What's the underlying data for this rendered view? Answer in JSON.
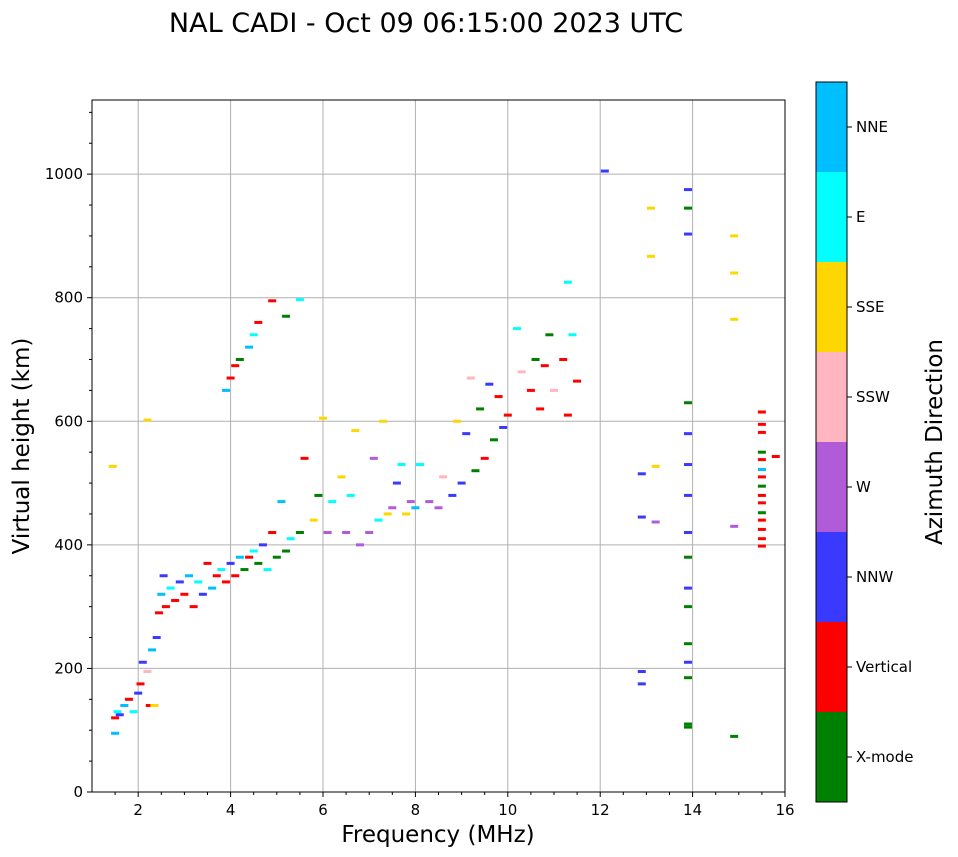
{
  "chart_data": {
    "type": "scatter",
    "title": "NAL CADI - Oct 09 06:15:00 2023 UTC",
    "xlabel": "Frequency (MHz)",
    "ylabel": "Virtual height (km)",
    "xlim": [
      1,
      16
    ],
    "ylim": [
      0,
      1120
    ],
    "xticks": [
      2,
      4,
      6,
      8,
      10,
      12,
      14,
      16
    ],
    "yticks": [
      0,
      200,
      400,
      600,
      800,
      1000
    ],
    "grid": true,
    "colorbar": {
      "label": "Azimuth Direction",
      "categories": [
        {
          "name": "X-mode",
          "color": "#008000"
        },
        {
          "name": "Vertical",
          "color": "#ff0000"
        },
        {
          "name": "NNW",
          "color": "#3a3aff"
        },
        {
          "name": "W",
          "color": "#b05cd8"
        },
        {
          "name": "SSW",
          "color": "#ffb6c1"
        },
        {
          "name": "SSE",
          "color": "#ffd700"
        },
        {
          "name": "E",
          "color": "#00ffff"
        },
        {
          "name": "NNE",
          "color": "#00bfff"
        }
      ]
    },
    "marker": "short horizontal dash",
    "points": [
      [
        1.45,
        527,
        "SSE"
      ],
      [
        1.5,
        95,
        "NNE"
      ],
      [
        1.5,
        120,
        "Vertical"
      ],
      [
        1.55,
        130,
        "E"
      ],
      [
        1.6,
        125,
        "NNW"
      ],
      [
        1.7,
        140,
        "NNE"
      ],
      [
        1.8,
        150,
        "Vertical"
      ],
      [
        1.9,
        130,
        "E"
      ],
      [
        2.0,
        160,
        "NNW"
      ],
      [
        2.05,
        175,
        "Vertical"
      ],
      [
        2.1,
        210,
        "NNW"
      ],
      [
        2.2,
        195,
        "SSW"
      ],
      [
        2.25,
        140,
        "Vertical"
      ],
      [
        2.3,
        230,
        "NNE"
      ],
      [
        2.35,
        140,
        "SSE"
      ],
      [
        2.4,
        250,
        "NNW"
      ],
      [
        2.2,
        602,
        "SSE"
      ],
      [
        2.45,
        290,
        "Vertical"
      ],
      [
        2.5,
        320,
        "NNE"
      ],
      [
        2.55,
        350,
        "NNW"
      ],
      [
        2.6,
        300,
        "Vertical"
      ],
      [
        2.7,
        330,
        "E"
      ],
      [
        2.8,
        310,
        "Vertical"
      ],
      [
        2.9,
        340,
        "NNW"
      ],
      [
        3.0,
        320,
        "Vertical"
      ],
      [
        3.1,
        350,
        "NNE"
      ],
      [
        3.2,
        300,
        "Vertical"
      ],
      [
        3.3,
        340,
        "E"
      ],
      [
        3.4,
        320,
        "NNW"
      ],
      [
        3.5,
        370,
        "Vertical"
      ],
      [
        3.6,
        330,
        "NNE"
      ],
      [
        3.7,
        350,
        "Vertical"
      ],
      [
        3.8,
        360,
        "E"
      ],
      [
        3.9,
        340,
        "Vertical"
      ],
      [
        4.0,
        370,
        "NNW"
      ],
      [
        4.1,
        350,
        "Vertical"
      ],
      [
        4.2,
        380,
        "NNE"
      ],
      [
        4.3,
        360,
        "X-mode"
      ],
      [
        4.4,
        380,
        "Vertical"
      ],
      [
        4.5,
        390,
        "E"
      ],
      [
        4.6,
        370,
        "X-mode"
      ],
      [
        4.7,
        400,
        "NNW"
      ],
      [
        4.8,
        360,
        "E"
      ],
      [
        4.9,
        420,
        "Vertical"
      ],
      [
        5.0,
        380,
        "X-mode"
      ],
      [
        5.1,
        470,
        "NNE"
      ],
      [
        5.2,
        390,
        "X-mode"
      ],
      [
        5.3,
        410,
        "E"
      ],
      [
        5.5,
        420,
        "X-mode"
      ],
      [
        5.6,
        540,
        "Vertical"
      ],
      [
        5.8,
        440,
        "SSE"
      ],
      [
        5.9,
        480,
        "X-mode"
      ],
      [
        6.0,
        605,
        "SSE"
      ],
      [
        6.1,
        420,
        "W"
      ],
      [
        6.2,
        470,
        "E"
      ],
      [
        6.4,
        510,
        "SSE"
      ],
      [
        6.5,
        420,
        "W"
      ],
      [
        6.6,
        480,
        "E"
      ],
      [
        6.7,
        585,
        "SSE"
      ],
      [
        6.8,
        400,
        "W"
      ],
      [
        7.0,
        420,
        "W"
      ],
      [
        7.1,
        540,
        "W"
      ],
      [
        7.2,
        440,
        "E"
      ],
      [
        7.3,
        600,
        "SSE"
      ],
      [
        7.4,
        450,
        "SSE"
      ],
      [
        7.5,
        460,
        "W"
      ],
      [
        7.6,
        500,
        "NNW"
      ],
      [
        7.7,
        530,
        "E"
      ],
      [
        7.8,
        450,
        "SSE"
      ],
      [
        7.9,
        470,
        "W"
      ],
      [
        8.0,
        460,
        "NNE"
      ],
      [
        8.1,
        530,
        "E"
      ],
      [
        3.9,
        650,
        "NNE"
      ],
      [
        4.0,
        670,
        "Vertical"
      ],
      [
        4.1,
        690,
        "Vertical"
      ],
      [
        4.2,
        700,
        "X-mode"
      ],
      [
        4.4,
        720,
        "NNE"
      ],
      [
        4.5,
        740,
        "E"
      ],
      [
        4.6,
        760,
        "Vertical"
      ],
      [
        4.9,
        795,
        "Vertical"
      ],
      [
        5.2,
        770,
        "X-mode"
      ],
      [
        5.5,
        797,
        "E"
      ],
      [
        8.3,
        470,
        "W"
      ],
      [
        8.5,
        460,
        "W"
      ],
      [
        8.6,
        510,
        "SSW"
      ],
      [
        8.8,
        480,
        "NNW"
      ],
      [
        8.9,
        600,
        "SSE"
      ],
      [
        9.0,
        500,
        "NNW"
      ],
      [
        9.1,
        580,
        "NNW"
      ],
      [
        9.2,
        670,
        "SSW"
      ],
      [
        9.3,
        520,
        "X-mode"
      ],
      [
        9.4,
        620,
        "X-mode"
      ],
      [
        9.5,
        540,
        "Vertical"
      ],
      [
        9.6,
        660,
        "NNW"
      ],
      [
        9.7,
        570,
        "X-mode"
      ],
      [
        9.8,
        640,
        "Vertical"
      ],
      [
        9.9,
        590,
        "NNW"
      ],
      [
        10.0,
        610,
        "Vertical"
      ],
      [
        10.2,
        750,
        "E"
      ],
      [
        10.3,
        680,
        "SSW"
      ],
      [
        10.5,
        650,
        "Vertical"
      ],
      [
        10.6,
        700,
        "X-mode"
      ],
      [
        10.7,
        620,
        "Vertical"
      ],
      [
        10.8,
        690,
        "Vertical"
      ],
      [
        10.9,
        740,
        "X-mode"
      ],
      [
        11.0,
        650,
        "SSW"
      ],
      [
        11.2,
        700,
        "Vertical"
      ],
      [
        11.3,
        825,
        "E"
      ],
      [
        11.4,
        740,
        "E"
      ],
      [
        11.5,
        665,
        "Vertical"
      ],
      [
        11.3,
        610,
        "Vertical"
      ],
      [
        12.1,
        1005,
        "NNW"
      ],
      [
        12.9,
        515,
        "NNW"
      ],
      [
        12.9,
        445,
        "NNW"
      ],
      [
        12.9,
        195,
        "NNW"
      ],
      [
        12.9,
        175,
        "NNW"
      ],
      [
        13.1,
        945,
        "SSE"
      ],
      [
        13.1,
        867,
        "SSE"
      ],
      [
        13.2,
        527,
        "SSE"
      ],
      [
        13.2,
        437,
        "W"
      ],
      [
        13.9,
        975,
        "NNW"
      ],
      [
        13.9,
        945,
        "X-mode"
      ],
      [
        13.9,
        903,
        "NNW"
      ],
      [
        13.9,
        630,
        "X-mode"
      ],
      [
        13.9,
        580,
        "NNW"
      ],
      [
        13.9,
        530,
        "NNW"
      ],
      [
        13.9,
        480,
        "NNW"
      ],
      [
        13.9,
        420,
        "NNW"
      ],
      [
        13.9,
        380,
        "X-mode"
      ],
      [
        13.9,
        330,
        "NNW"
      ],
      [
        13.9,
        300,
        "X-mode"
      ],
      [
        13.9,
        240,
        "X-mode"
      ],
      [
        13.9,
        210,
        "NNW"
      ],
      [
        13.9,
        185,
        "X-mode"
      ],
      [
        13.9,
        110,
        "X-mode"
      ],
      [
        13.9,
        105,
        "X-mode"
      ],
      [
        14.9,
        900,
        "SSE"
      ],
      [
        14.9,
        840,
        "SSE"
      ],
      [
        14.9,
        765,
        "SSE"
      ],
      [
        14.9,
        430,
        "W"
      ],
      [
        14.9,
        90,
        "X-mode"
      ],
      [
        15.5,
        615,
        "Vertical"
      ],
      [
        15.5,
        595,
        "Vertical"
      ],
      [
        15.5,
        582,
        "Vertical"
      ],
      [
        15.5,
        550,
        "X-mode"
      ],
      [
        15.5,
        538,
        "Vertical"
      ],
      [
        15.5,
        522,
        "NNE"
      ],
      [
        15.5,
        510,
        "Vertical"
      ],
      [
        15.5,
        495,
        "X-mode"
      ],
      [
        15.5,
        480,
        "Vertical"
      ],
      [
        15.5,
        468,
        "Vertical"
      ],
      [
        15.5,
        452,
        "X-mode"
      ],
      [
        15.5,
        440,
        "Vertical"
      ],
      [
        15.5,
        425,
        "Vertical"
      ],
      [
        15.5,
        410,
        "Vertical"
      ],
      [
        15.5,
        398,
        "Vertical"
      ],
      [
        15.8,
        543,
        "Vertical"
      ]
    ]
  }
}
